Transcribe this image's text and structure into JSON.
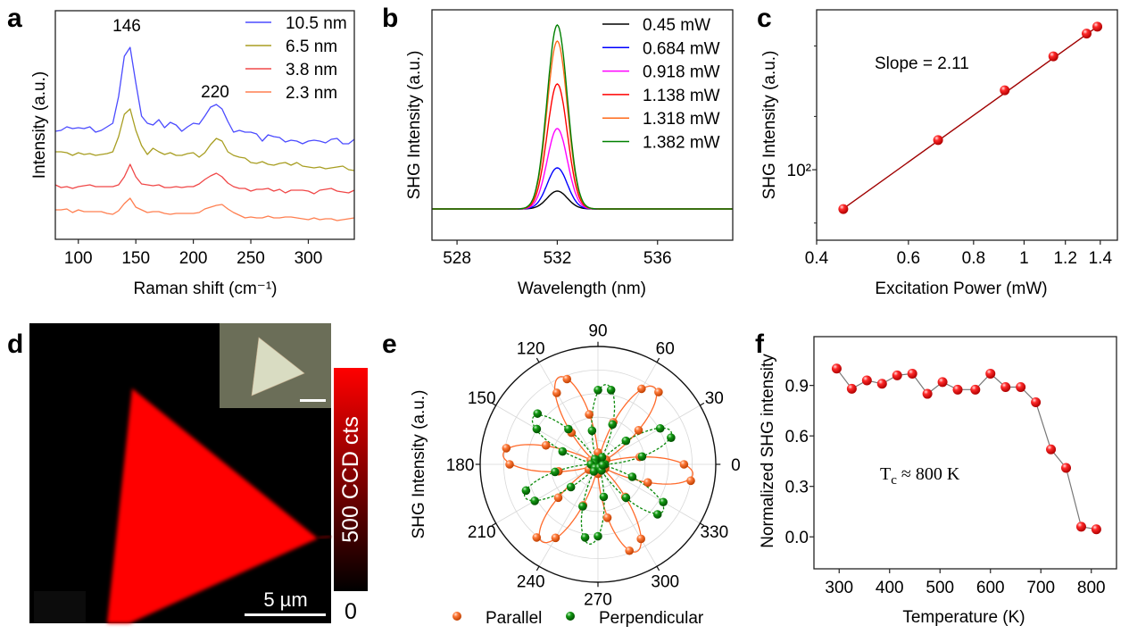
{
  "panel_letters": {
    "a": "a",
    "b": "b",
    "c": "c",
    "d": "d",
    "e": "e",
    "f": "f"
  },
  "image_panel": {
    "scale_bar": "5 µm",
    "colorbar_max": "500 CCD cts",
    "colorbar_min": "0",
    "colormap": [
      "#000000",
      "#ff0000"
    ],
    "inset_background": "#6b6e58",
    "flake_color": "#d9dcc2"
  },
  "chart_data": [
    {
      "type": "line",
      "xlabel": "Raman shift (cm⁻¹)",
      "ylabel": "Intensity (a.u.)",
      "xlim": [
        80,
        340
      ],
      "ylim": [
        0,
        256
      ],
      "xticks": [
        "100",
        "150",
        "200",
        "250",
        "300"
      ],
      "legend": "top-right",
      "annotations": [
        "146",
        "220"
      ],
      "x": [
        80,
        85,
        90,
        95,
        100,
        105,
        110,
        115,
        120,
        125,
        130,
        135,
        140,
        145,
        150,
        155,
        160,
        165,
        170,
        175,
        180,
        185,
        190,
        195,
        200,
        205,
        210,
        215,
        220,
        225,
        230,
        235,
        240,
        245,
        250,
        255,
        260,
        265,
        270,
        275,
        280,
        285,
        290,
        295,
        300,
        305,
        310,
        315,
        320,
        325,
        330,
        335,
        340
      ],
      "series": [
        {
          "name": "10.5 nm",
          "color": "#4b4bff",
          "values": [
            121,
            122,
            126,
            124,
            125,
            124,
            126,
            120,
            122,
            126,
            130,
            160,
            205,
            215,
            175,
            138,
            130,
            128,
            134,
            125,
            131,
            128,
            121,
            126,
            130,
            129,
            138,
            148,
            151,
            146,
            132,
            120,
            122,
            120,
            120,
            118,
            110,
            117,
            115,
            114,
            109,
            111,
            110,
            107,
            110,
            111,
            110,
            108,
            112,
            113,
            107,
            107,
            112
          ]
        },
        {
          "name": "6.5 nm",
          "color": "#a89e22",
          "values": [
            98,
            98,
            97,
            94,
            97,
            95,
            96,
            94,
            95,
            96,
            98,
            115,
            140,
            146,
            122,
            105,
            95,
            102,
            98,
            95,
            97,
            94,
            94,
            96,
            97,
            92,
            97,
            106,
            113,
            110,
            98,
            94,
            92,
            91,
            86,
            85,
            87,
            84,
            83,
            85,
            86,
            83,
            86,
            82,
            81,
            80,
            81,
            79,
            80,
            81,
            82,
            78,
            77
          ]
        },
        {
          "name": "3.8 nm",
          "color": "#f04848",
          "values": [
            61,
            58,
            59,
            57,
            59,
            60,
            61,
            59,
            59,
            59,
            59,
            61,
            70,
            84,
            70,
            62,
            61,
            60,
            61,
            58,
            58,
            59,
            58,
            59,
            59,
            62,
            67,
            71,
            74,
            70,
            63,
            59,
            57,
            57,
            54,
            56,
            56,
            57,
            54,
            56,
            52,
            55,
            55,
            55,
            54,
            51,
            55,
            56,
            57,
            54,
            53,
            52,
            55
          ]
        },
        {
          "name": "2.3 nm",
          "color": "#ff7f50",
          "values": [
            33,
            33,
            34,
            30,
            33,
            31,
            31,
            31,
            31,
            29,
            28,
            32,
            40,
            46,
            36,
            33,
            30,
            31,
            31,
            29,
            28,
            29,
            29,
            29,
            29,
            30,
            34,
            36,
            38,
            39,
            34,
            30,
            27,
            24,
            25,
            24,
            24,
            26,
            24,
            24,
            25,
            25,
            24,
            23,
            22,
            24,
            22,
            23,
            23,
            21,
            22,
            23,
            24
          ]
        }
      ]
    },
    {
      "type": "line",
      "xlabel": "Wavelength (nm)",
      "ylabel": "SHG Intensity (a.u.)",
      "xlim": [
        527,
        539
      ],
      "ylim": [
        -35,
        223
      ],
      "xticks": [
        "528",
        "532",
        "536"
      ],
      "legend": "top-right",
      "peak_center_nm": 532,
      "fwhm_nm": 0.95,
      "series": [
        {
          "name": "0.45 mW",
          "color": "#000000",
          "peak_intensity": 20
        },
        {
          "name": "0.684 mW",
          "color": "#0000ff",
          "peak_intensity": 46
        },
        {
          "name": "0.918 mW",
          "color": "#ff00ff",
          "peak_intensity": 90
        },
        {
          "name": "1.138 mW",
          "color": "#ff0000",
          "peak_intensity": 140
        },
        {
          "name": "1.318 mW",
          "color": "#ff6a1a",
          "peak_intensity": 188
        },
        {
          "name": "1.382 mW",
          "color": "#008000",
          "peak_intensity": 206
        }
      ]
    },
    {
      "type": "scatter",
      "xscale": "log",
      "yscale": "log",
      "xlabel": "Excitation Power (mW)",
      "ylabel": "SHG Intensity (a.u.)",
      "xlim": [
        0.4,
        1.51
      ],
      "ylim": [
        40,
        800
      ],
      "xticks": [
        "0.4",
        "0.6",
        "0.8",
        "1",
        "1.2",
        "1.4"
      ],
      "ytick_label": "10²",
      "annotation": "Slope = 2.11",
      "slope": 2.11,
      "marker_color": "#ee0000",
      "fit_color": "#a00000",
      "x": [
        0.45,
        0.684,
        0.918,
        1.138,
        1.318,
        1.382
      ],
      "y": [
        60,
        147,
        281,
        437,
        587,
        643
      ]
    },
    {
      "type": "polar",
      "ylabel": "SHG Intensity (a.u.)",
      "angle_ticks": [
        "0",
        "30",
        "60",
        "90",
        "120",
        "150",
        "180",
        "210",
        "240",
        "270",
        "300",
        "330"
      ],
      "rlim": [
        0,
        1
      ],
      "legend": "bottom",
      "angles_deg": [
        0,
        10,
        20,
        30,
        40,
        50,
        60,
        70,
        80,
        90,
        100,
        110,
        120,
        130,
        140,
        150,
        160,
        170,
        180,
        190,
        200,
        210,
        220,
        230,
        240,
        250,
        260,
        270,
        280,
        290,
        300,
        310,
        320,
        330,
        340,
        350
      ],
      "series": [
        {
          "name": "Parallel",
          "color": "#ff6a2a",
          "fit_style": "solid",
          "fit": {
            "model": "cos2(3(theta-theta0))",
            "amplitude": 0.81,
            "theta0_deg": -6
          },
          "values": [
            0.73,
            0.36,
            0.04,
            0.08,
            0.45,
            0.8,
            0.74,
            0.38,
            0.03,
            0.1,
            0.43,
            0.77,
            0.7,
            0.35,
            0.05,
            0.07,
            0.47,
            0.79,
            0.75,
            0.34,
            0.04,
            0.09,
            0.44,
            0.81,
            0.72,
            0.37,
            0.03,
            0.08,
            0.46,
            0.78,
            0.73,
            0.36,
            0.05,
            0.07,
            0.45,
            0.8
          ]
        },
        {
          "name": "Perpendicular",
          "color": "#0a8a0a",
          "fit_style": "dashed",
          "fit": {
            "model": "sin2(3(theta-theta0))",
            "amplitude": 0.68,
            "theta0_deg": -6
          },
          "values": [
            0.06,
            0.38,
            0.66,
            0.61,
            0.31,
            0.03,
            0.07,
            0.36,
            0.64,
            0.63,
            0.29,
            0.04,
            0.05,
            0.39,
            0.67,
            0.6,
            0.32,
            0.03,
            0.06,
            0.37,
            0.65,
            0.62,
            0.3,
            0.04,
            0.07,
            0.38,
            0.63,
            0.61,
            0.28,
            0.03,
            0.06,
            0.37,
            0.66,
            0.64,
            0.31,
            0.04
          ]
        }
      ]
    },
    {
      "type": "line",
      "xlabel": "Temperature (K)",
      "ylabel": "Normalized SHG intensity",
      "xlim": [
        250,
        850
      ],
      "ylim": [
        -0.19,
        1.19
      ],
      "xticks": [
        "300",
        "400",
        "500",
        "600",
        "700",
        "800"
      ],
      "yticks": [
        "0.0",
        "0.3",
        "0.6",
        "0.9"
      ],
      "annotation": {
        "symbol": "T",
        "subscript": "c",
        "text": " ≈ 800 K"
      },
      "marker_color": "#ee0000",
      "line_color": "#777777",
      "x": [
        295,
        325,
        355,
        385,
        415,
        445,
        475,
        505,
        535,
        570,
        600,
        630,
        660,
        690,
        720,
        750,
        780,
        810
      ],
      "y": [
        1.0,
        0.88,
        0.93,
        0.91,
        0.96,
        0.97,
        0.85,
        0.92,
        0.875,
        0.875,
        0.97,
        0.89,
        0.89,
        0.8,
        0.52,
        0.41,
        0.06,
        0.045
      ]
    }
  ]
}
